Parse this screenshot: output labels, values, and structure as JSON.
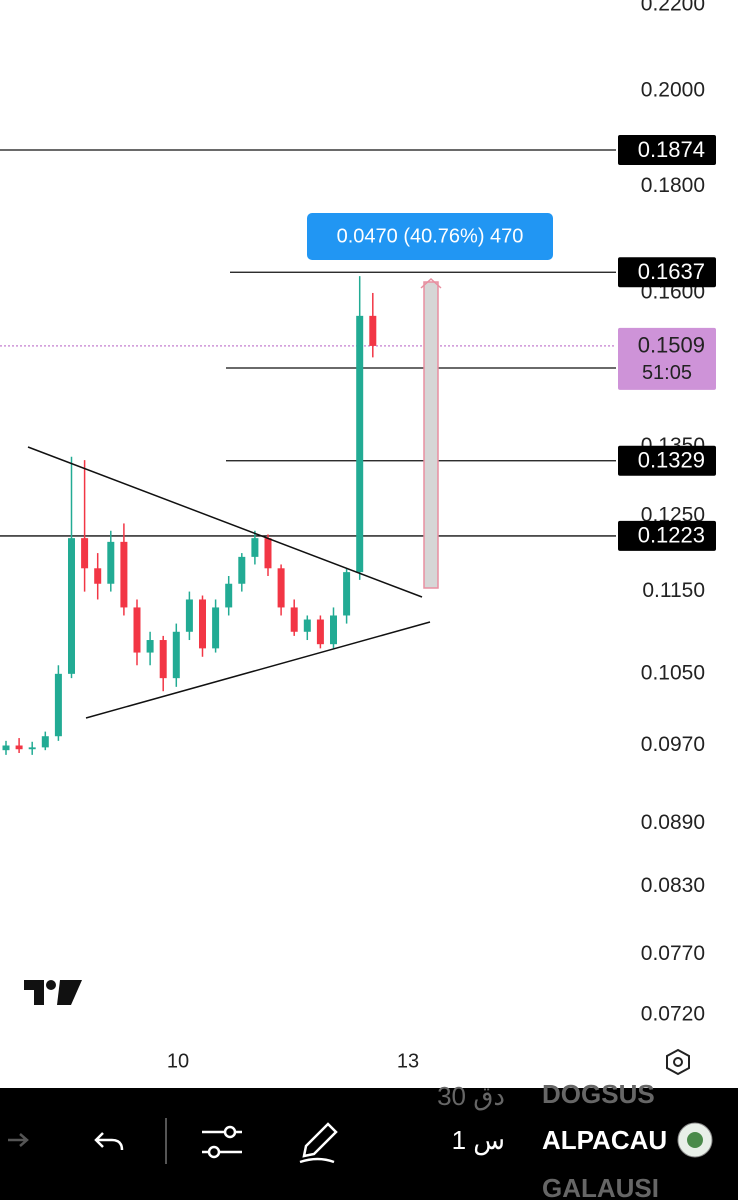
{
  "chart_data": {
    "type": "candlestick",
    "ylim": [
      0.072,
      0.22
    ],
    "log_scale": true,
    "yticks": [
      {
        "value": 0.22,
        "label": "0.2200"
      },
      {
        "value": 0.2,
        "label": "0.2000"
      },
      {
        "value": 0.18,
        "label": "0.1800"
      },
      {
        "value": 0.16,
        "label": "0.1600"
      },
      {
        "value": 0.135,
        "label": "0.1350"
      },
      {
        "value": 0.125,
        "label": "0.1250"
      },
      {
        "value": 0.115,
        "label": "0.1150"
      },
      {
        "value": 0.105,
        "label": "0.1050"
      },
      {
        "value": 0.097,
        "label": "0.0970"
      },
      {
        "value": 0.089,
        "label": "0.0890"
      },
      {
        "value": 0.083,
        "label": "0.0830"
      },
      {
        "value": 0.077,
        "label": "0.0770"
      },
      {
        "value": 0.072,
        "label": "0.0720"
      }
    ],
    "xticks": [
      "10",
      "13"
    ],
    "up_color": "#22ab94",
    "down_color": "#f23645",
    "candles": [
      [
        0.0965,
        0.0975,
        0.096,
        0.097
      ],
      [
        0.097,
        0.0978,
        0.0962,
        0.0966
      ],
      [
        0.0966,
        0.0974,
        0.096,
        0.0968
      ],
      [
        0.0968,
        0.0985,
        0.0965,
        0.098
      ],
      [
        0.098,
        0.106,
        0.0975,
        0.105
      ],
      [
        0.105,
        0.1335,
        0.1045,
        0.122
      ],
      [
        0.122,
        0.133,
        0.115,
        0.118
      ],
      [
        0.118,
        0.12,
        0.114,
        0.116
      ],
      [
        0.116,
        0.123,
        0.115,
        0.1215
      ],
      [
        0.1215,
        0.124,
        0.112,
        0.113
      ],
      [
        0.113,
        0.114,
        0.106,
        0.1075
      ],
      [
        0.1075,
        0.11,
        0.106,
        0.109
      ],
      [
        0.109,
        0.1095,
        0.103,
        0.1045
      ],
      [
        0.1045,
        0.111,
        0.1035,
        0.11
      ],
      [
        0.11,
        0.115,
        0.109,
        0.114
      ],
      [
        0.114,
        0.1145,
        0.107,
        0.108
      ],
      [
        0.108,
        0.114,
        0.1075,
        0.113
      ],
      [
        0.113,
        0.117,
        0.112,
        0.116
      ],
      [
        0.116,
        0.12,
        0.115,
        0.1195
      ],
      [
        0.1195,
        0.123,
        0.1185,
        0.122
      ],
      [
        0.122,
        0.1225,
        0.117,
        0.118
      ],
      [
        0.118,
        0.1185,
        0.112,
        0.113
      ],
      [
        0.113,
        0.114,
        0.1095,
        0.11
      ],
      [
        0.11,
        0.112,
        0.109,
        0.1115
      ],
      [
        0.1115,
        0.112,
        0.108,
        0.1085
      ],
      [
        0.1085,
        0.113,
        0.108,
        0.112
      ],
      [
        0.112,
        0.118,
        0.111,
        0.1175
      ],
      [
        0.1175,
        0.163,
        0.1165,
        0.156
      ],
      [
        0.156,
        0.16,
        0.149,
        0.1509
      ]
    ],
    "levels": [
      0.1874,
      0.1637,
      0.1329,
      0.1223
    ],
    "current_price": 0.1509,
    "current_price_color": "#ce93d8",
    "countdown": "51:05",
    "measure_label": "0.0470 (40.76%) 470"
  },
  "toolbar": {
    "symbols": [
      "DOGSUS",
      "ALPACAU",
      "GALAUSI"
    ],
    "intervals": [
      "30 دق",
      "1 س"
    ]
  }
}
